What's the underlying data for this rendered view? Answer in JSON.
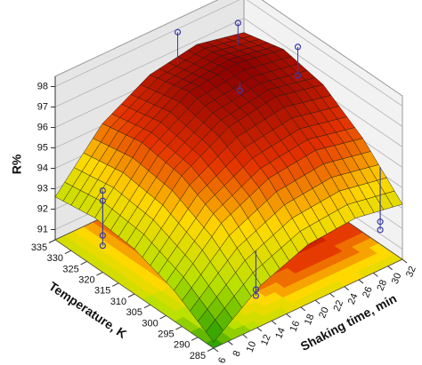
{
  "chart_data": {
    "type": "surface",
    "xlabel": "Shaking time, min",
    "ylabel": "Temperature, K",
    "zlabel": "R%",
    "x": [
      6,
      12.5,
      19,
      25.5,
      32
    ],
    "y": [
      285,
      297.5,
      310,
      322.5,
      335
    ],
    "z": [
      [
        90.8,
        92.5,
        93.4,
        93.6,
        93.2
      ],
      [
        92.0,
        94.2,
        95.3,
        95.6,
        95.1
      ],
      [
        92.7,
        95.2,
        96.5,
        96.9,
        96.4
      ],
      [
        92.9,
        95.5,
        96.9,
        97.2,
        96.8
      ],
      [
        92.6,
        95.1,
        96.4,
        96.8,
        96.3
      ]
    ],
    "points": {
      "x": [
        22,
        29,
        32,
        32,
        6,
        6,
        6,
        6,
        14,
        14,
        32,
        32,
        24
      ],
      "y": [
        333,
        330,
        318,
        318,
        320,
        320,
        320,
        320,
        290,
        290,
        292,
        292,
        318
      ],
      "z": [
        98.2,
        97.8,
        97.4,
        96.0,
        94.5,
        94.0,
        92.3,
        91.8,
        91.5,
        91.2,
        91.6,
        91.2,
        96.6
      ],
      "color": "#3a3aa8"
    },
    "xlim": [
      6,
      32
    ],
    "ylim": [
      285,
      335
    ],
    "zlim": [
      90.5,
      98.5
    ],
    "xticks": [
      6,
      8,
      10,
      12,
      14,
      16,
      18,
      20,
      22,
      24,
      26,
      28,
      30,
      32
    ],
    "yticks": [
      285,
      290,
      295,
      300,
      305,
      310,
      315,
      320,
      325,
      330,
      335
    ],
    "zticks": [
      91,
      92,
      93,
      94,
      95,
      96,
      97,
      98
    ],
    "colormap": [
      "#1f9a00",
      "#b8e000",
      "#ffd800",
      "#e43000",
      "#8c0000"
    ],
    "wall_color": "#e6e6e6",
    "grid": true
  }
}
